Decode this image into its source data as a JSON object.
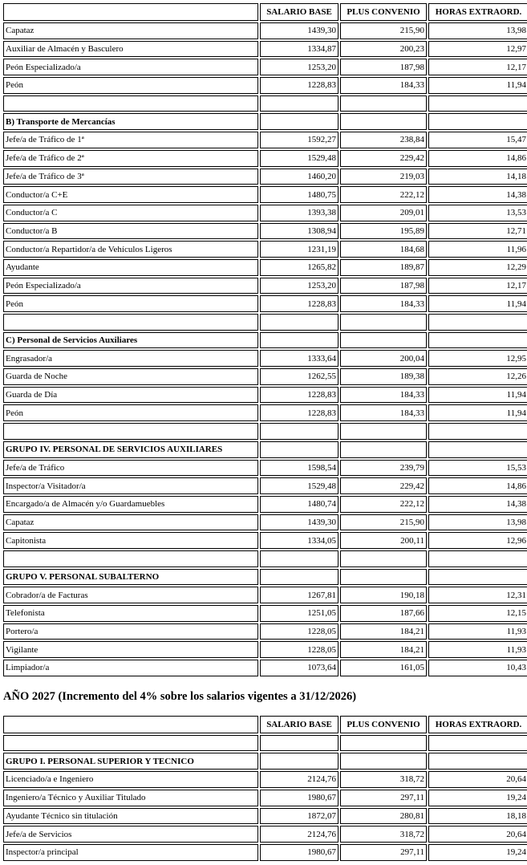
{
  "table1": {
    "header": [
      "SALARIO BASE",
      "PLUS CONVENIO",
      "HORAS EXTRAORD."
    ],
    "rows": [
      [
        "Capataz",
        "1439,30",
        "215,90",
        "13,98"
      ],
      [
        "Auxiliar de Almacén y Basculero",
        "1334,87",
        "200,23",
        "12,97"
      ],
      [
        "Peón Especializado/a",
        "1253,20",
        "187,98",
        "12,17"
      ],
      [
        "Peón",
        "1228,83",
        "184,33",
        "11,94"
      ],
      null,
      [
        "B) Transporte de Mercancías"
      ],
      [
        "Jefe/a de Tráfico de 1ª",
        "1592,27",
        "238,84",
        "15,47"
      ],
      [
        "Jefe/a de Tráfico de 2ª",
        "1529,48",
        "229,42",
        "14,86"
      ],
      [
        "Jefe/a de Tráfico de 3ª",
        "1460,20",
        "219,03",
        "14,18"
      ],
      [
        "Conductor/a C+E",
        "1480,75",
        "222,12",
        "14,38"
      ],
      [
        "Conductor/a C",
        "1393,38",
        "209,01",
        "13,53"
      ],
      [
        "Conductor/a B",
        "1308,94",
        "195,89",
        "12,71"
      ],
      [
        "Conductor/a Repartidor/a de Vehículos Ligeros",
        "1231,19",
        "184,68",
        "11,96"
      ],
      [
        "Ayudante",
        "1265,82",
        "189,87",
        "12,29"
      ],
      [
        "Peón Especializado/a",
        "1253,20",
        "187,98",
        "12,17"
      ],
      [
        "Peón",
        "1228,83",
        "184,33",
        "11,94"
      ],
      null,
      [
        "C) Personal de Servicios Auxiliares"
      ],
      [
        "Engrasador/a",
        "1333,64",
        "200,04",
        "12,95"
      ],
      [
        "Guarda de Noche",
        "1262,55",
        "189,38",
        "12,26"
      ],
      [
        "Guarda de Día",
        "1228,83",
        "184,33",
        "11,94"
      ],
      [
        "Peón",
        "1228,83",
        "184,33",
        "11,94"
      ],
      null,
      [
        "GRUPO IV. PERSONAL DE SERVICIOS AUXILIARES"
      ],
      [
        "Jefe/a de Tráfico",
        "1598,54",
        "239,79",
        "15,53"
      ],
      [
        "Inspector/a Visitador/a",
        "1529,48",
        "229,42",
        "14,86"
      ],
      [
        "Encargado/a de Almacén y/o Guardamuebles",
        "1480,74",
        "222,12",
        "14,38"
      ],
      [
        "Capataz",
        "1439,30",
        "215,90",
        "13,98"
      ],
      [
        "Capitonista",
        "1334,05",
        "200,11",
        "12,96"
      ],
      null,
      [
        "GRUPO V. PERSONAL SUBALTERNO"
      ],
      [
        "Cobrador/a de Facturas",
        "1267,81",
        "190,18",
        "12,31"
      ],
      [
        "Telefonista",
        "1251,05",
        "187,66",
        "12,15"
      ],
      [
        "Portero/a",
        "1228,05",
        "184,21",
        "11,93"
      ],
      [
        "Vigilante",
        "1228,05",
        "184,21",
        "11,93"
      ],
      [
        "Limpiador/a",
        "1073,64",
        "161,05",
        "10,43"
      ]
    ]
  },
  "heading": "AÑO 2027 (Incremento del 4% sobre los salarios vigentes a 31/12/2026)",
  "table2": {
    "header": [
      "SALARIO BASE",
      "PLUS CONVENIO",
      "HORAS EXTRAORD."
    ],
    "rows": [
      null,
      [
        "GRUPO I. PERSONAL SUPERIOR Y TECNICO"
      ],
      [
        "Licenciado/a e Ingeniero",
        "2124,76",
        "318,72",
        "20,64"
      ],
      [
        "Ingeniero/a Técnico y Auxiliar Titulado",
        "1980,67",
        "297,11",
        "19,24"
      ],
      [
        "Ayudante Técnico sin titulación",
        "1872,07",
        "280,81",
        "18,18"
      ],
      [
        "Jefe/a de Servicios",
        "2124,76",
        "318,72",
        "20,64"
      ],
      [
        "Inspector/a principal",
        "1980,67",
        "297,11",
        "19,24"
      ]
    ]
  }
}
